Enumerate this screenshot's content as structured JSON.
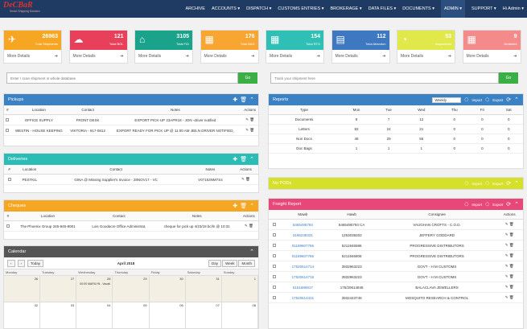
{
  "app": {
    "logo": "DeCBaR",
    "tagline": "Smart Shipping Solution"
  },
  "nav": [
    "ARCHIVE",
    "ACCOUNTS ▾",
    "DISPATCH ▾",
    "CUSTOMS ENTRIES ▾",
    "BROKERAGE ▾",
    "DATA FILES ▾",
    "DOCUMENTS ▾",
    "ADMIN ▾",
    "SUPPORT ▾",
    "Hi Admin ▾"
  ],
  "tiles": [
    {
      "num": "26963",
      "label": "Total Shipments",
      "color": "#f6a623",
      "icon": "✈",
      "more": "More Details"
    },
    {
      "num": "121",
      "label": "Total BOL",
      "color": "#e8405a",
      "icon": "☁",
      "more": "More Details"
    },
    {
      "num": "3105",
      "label": "Total F/D",
      "color": "#1aa38a",
      "icon": "⌂",
      "more": "More Details"
    },
    {
      "num": "176",
      "label": "Total B&D",
      "color": "#f8a532",
      "icon": "▦",
      "more": "More Details"
    },
    {
      "num": "154",
      "label": "Total RTO",
      "color": "#2fbfb5",
      "icon": "▦",
      "more": "More Details"
    },
    {
      "num": "112",
      "label": "Total Abandon",
      "color": "#3d78c0",
      "icon": "▤",
      "more": "More Details"
    },
    {
      "num": "53",
      "label": "Inspections",
      "color": "#e0e84a",
      "icon": "◔",
      "more": "More Details"
    },
    {
      "num": "9",
      "label": "Detained",
      "color": "#f58a8a",
      "icon": "▦",
      "more": "More Details"
    }
  ],
  "search1": {
    "placeholder": "Enter / scan shipment in whole database",
    "go": "Go"
  },
  "search2": {
    "placeholder": "Track your shipment here",
    "go": "Go"
  },
  "pickups": {
    "title": "Pickups",
    "cols": [
      "#",
      "Location",
      "Contact",
      "Notes",
      "Actions"
    ],
    "rows": [
      [
        "OFFICE SUPPLY",
        "FRONT DESK",
        "EXPORT PICK-UP 23APR18 - JON -driver notified"
      ],
      [
        "WESTIN - HOUSE KEEPING",
        "VIKTORIA - 917-0812",
        "EXPORT READY FOR PICK UP @ 11:00 AM JB/LN DRIVER NOTIFIED,"
      ]
    ]
  },
  "deliveries": {
    "title": "Deliveries",
    "cols": [
      "#",
      "Location",
      "Contact",
      "Notes",
      "Actions"
    ],
    "rows": [
      [
        "PESTKIL",
        "GINA @ Missing Supplier's Invoice - 28NOV17 - VC",
        "V07153NM7S4"
      ]
    ]
  },
  "cheques": {
    "title": "Cheques",
    "cols": [
      "#",
      "Location",
      "Contact",
      "Notes",
      "Actions"
    ],
    "rows": [
      [
        "The Phoenix Group 345-945-8001",
        "Lois Goodacre Office Administrat,",
        "cheque for pick up 4/23/18 bc/ln @ 10:31"
      ]
    ]
  },
  "reports": {
    "title": "Reports",
    "period": "Weekly",
    "import": "Import",
    "export": "Export",
    "cols": [
      "Type",
      "Mon",
      "Tue",
      "Wed",
      "Thu",
      "Fri",
      "Sat"
    ],
    "rows": [
      [
        "Documents",
        "9",
        "7",
        "12",
        "0",
        "0",
        "0"
      ],
      [
        "Letters",
        "82",
        "24",
        "21",
        "0",
        "0",
        "0"
      ],
      [
        "Non Docs",
        "48",
        "29",
        "55",
        "0",
        "0",
        "0"
      ],
      [
        "Doc Bags",
        "1",
        "1",
        "1",
        "0",
        "0",
        "0"
      ]
    ]
  },
  "nopods": {
    "title": "No PODs",
    "import": "Import",
    "export": "Export"
  },
  "freight": {
    "title": "Freight Report",
    "import": "Import",
    "export": "Export",
    "cols": [
      "Mawb",
      "Hawb",
      "Consignee",
      "Actions"
    ],
    "rows": [
      [
        "5465495794",
        "5465495794 CA",
        "VAUGHAN CROFTS - C.O.D."
      ],
      [
        "3196238331",
        "1253039202",
        "JEFFERY GODDARD"
      ],
      [
        "01189607766",
        "5211946586",
        "PROGRESSIVE DISTRIBUTORS"
      ],
      [
        "01189607766",
        "5211946806",
        "PROGRESSIVE DISTRIBUTORS"
      ],
      [
        "17520614714",
        "3932963223",
        "GOVT - H M CUSTOMS"
      ],
      [
        "17520614716",
        "3932963223",
        "GOVT - H M CUSTOMS"
      ],
      [
        "5151686917",
        "175/20614845",
        "BALACLAVA JEWELLERS"
      ],
      [
        "17520614431",
        "3932443746",
        "MOSQUITO RESEARCH & CONTROL"
      ]
    ]
  },
  "calendar": {
    "title": "Calendar",
    "today": "Today",
    "month": "April 2018",
    "views": [
      "Day",
      "Week",
      "Month"
    ],
    "days": [
      "Monday",
      "Tuesday",
      "Wednesday",
      "Thursday",
      "Friday",
      "Saturday",
      "Sunday"
    ],
    "week1": [
      "26",
      "27",
      "28",
      "29",
      "30",
      "31",
      "1"
    ],
    "event": "00:00 MARILYN - Vacati",
    "week2": [
      "02",
      "03",
      "04",
      "05",
      "06",
      "07",
      "08"
    ]
  }
}
